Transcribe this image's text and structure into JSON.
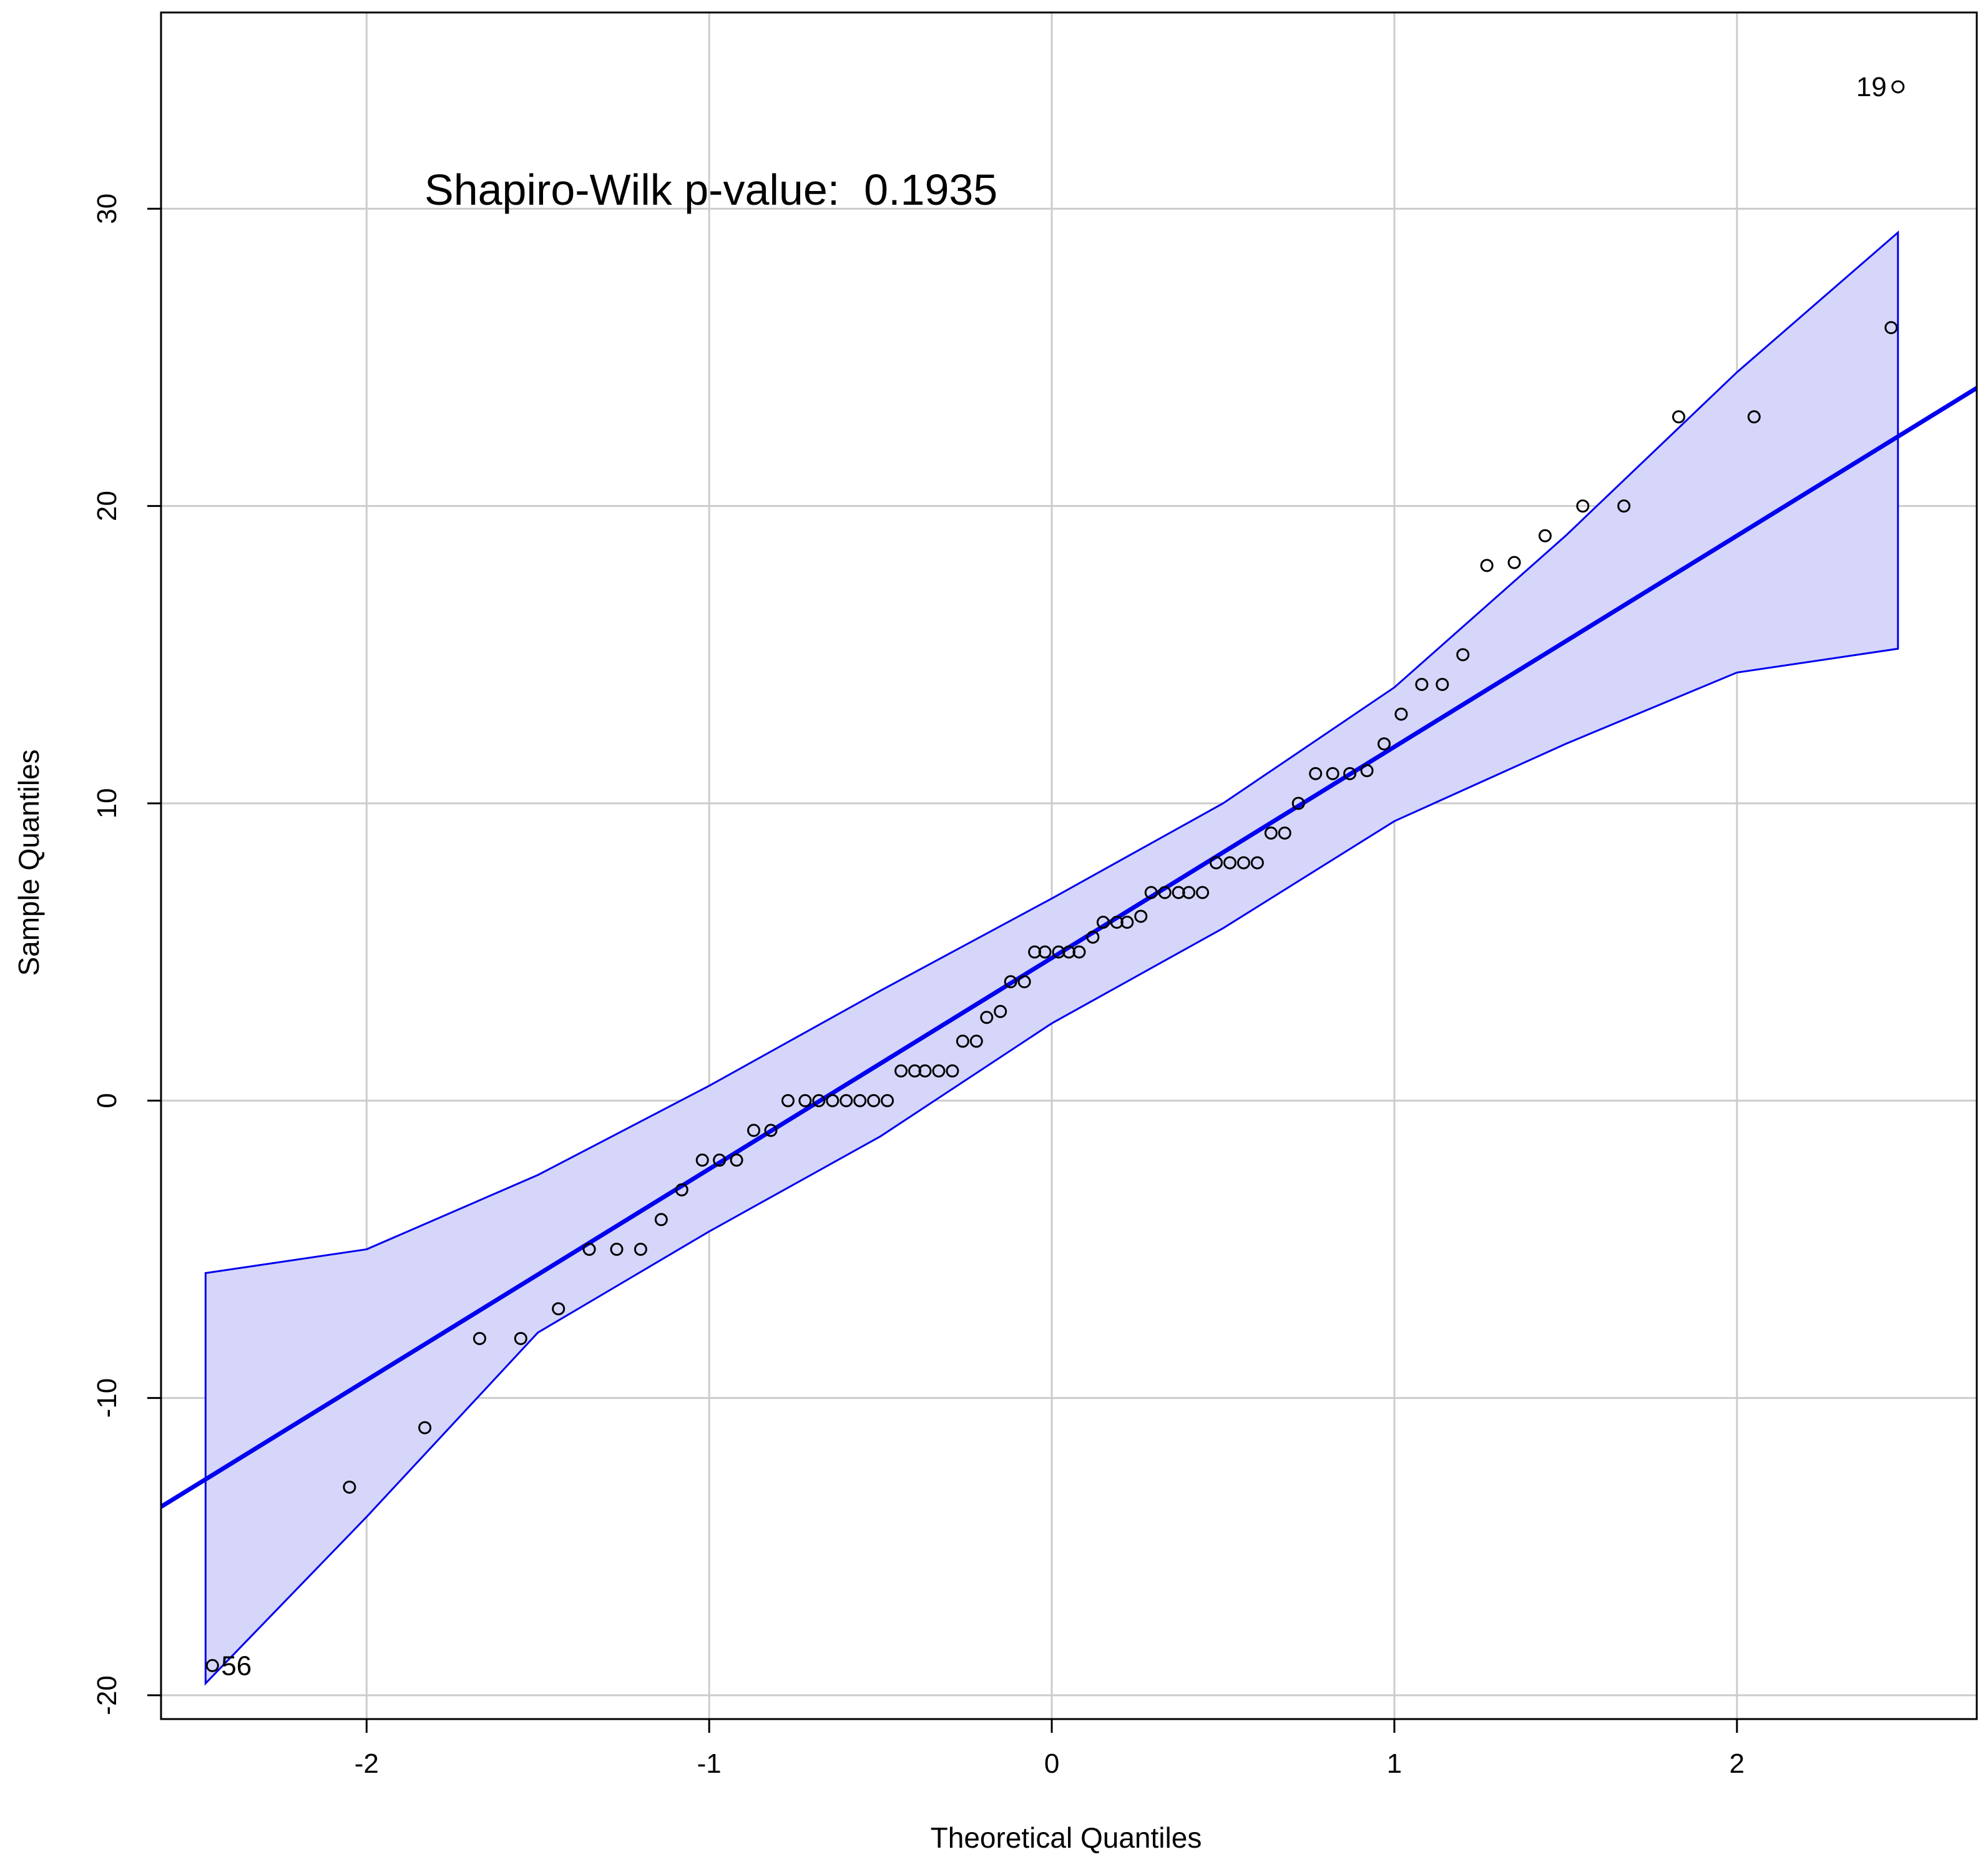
{
  "chart_data": {
    "type": "scatter",
    "xlabel": "Theoretical Quantiles",
    "ylabel": "Sample Quantiles",
    "xlim": [
      -2.6,
      2.7
    ],
    "ylim": [
      -20.8,
      36.6
    ],
    "x_ticks": [
      -2,
      -1,
      0,
      1,
      2
    ],
    "y_ticks": [
      -20,
      -10,
      0,
      10,
      20,
      30
    ],
    "x_tick_labels": [
      "-2",
      "-1",
      "0",
      "1",
      "2"
    ],
    "y_tick_labels": [
      "-20",
      "-10",
      "0",
      "10",
      "20",
      "30"
    ],
    "grid": true,
    "annotation": "Shapiro-Wilk p-value:  0.1935",
    "colors": {
      "line": "#0000ee",
      "band_fill": "#d6d6fa",
      "band_edge": "#0000ee",
      "points": "#000000",
      "grid": "#cccccc"
    },
    "points": [
      {
        "x": -2.45,
        "y": -19,
        "label": "56"
      },
      {
        "x": -2.05,
        "y": -13
      },
      {
        "x": -1.83,
        "y": -11
      },
      {
        "x": -1.67,
        "y": -8
      },
      {
        "x": -1.55,
        "y": -8
      },
      {
        "x": -1.44,
        "y": -7
      },
      {
        "x": -1.35,
        "y": -5
      },
      {
        "x": -1.27,
        "y": -5
      },
      {
        "x": -1.2,
        "y": -5
      },
      {
        "x": -1.14,
        "y": -4
      },
      {
        "x": -1.08,
        "y": -3
      },
      {
        "x": -1.02,
        "y": -2
      },
      {
        "x": -0.97,
        "y": -2
      },
      {
        "x": -0.92,
        "y": -2
      },
      {
        "x": -0.87,
        "y": -1
      },
      {
        "x": -0.82,
        "y": -1
      },
      {
        "x": -0.77,
        "y": 0
      },
      {
        "x": -0.72,
        "y": 0
      },
      {
        "x": -0.68,
        "y": 0
      },
      {
        "x": -0.64,
        "y": 0
      },
      {
        "x": -0.6,
        "y": 0
      },
      {
        "x": -0.56,
        "y": 0
      },
      {
        "x": -0.52,
        "y": 0
      },
      {
        "x": -0.48,
        "y": 0
      },
      {
        "x": -0.44,
        "y": 1
      },
      {
        "x": -0.4,
        "y": 1
      },
      {
        "x": -0.37,
        "y": 1
      },
      {
        "x": -0.33,
        "y": 1
      },
      {
        "x": -0.29,
        "y": 1
      },
      {
        "x": -0.26,
        "y": 2
      },
      {
        "x": -0.22,
        "y": 2
      },
      {
        "x": -0.19,
        "y": 2.8
      },
      {
        "x": -0.15,
        "y": 3
      },
      {
        "x": -0.12,
        "y": 4
      },
      {
        "x": -0.08,
        "y": 4
      },
      {
        "x": -0.05,
        "y": 5
      },
      {
        "x": -0.02,
        "y": 5
      },
      {
        "x": 0.02,
        "y": 5
      },
      {
        "x": 0.05,
        "y": 5
      },
      {
        "x": 0.08,
        "y": 5
      },
      {
        "x": 0.12,
        "y": 5.5
      },
      {
        "x": 0.15,
        "y": 6
      },
      {
        "x": 0.19,
        "y": 6
      },
      {
        "x": 0.22,
        "y": 6
      },
      {
        "x": 0.26,
        "y": 6.2
      },
      {
        "x": 0.29,
        "y": 7
      },
      {
        "x": 0.33,
        "y": 7
      },
      {
        "x": 0.37,
        "y": 7
      },
      {
        "x": 0.4,
        "y": 7
      },
      {
        "x": 0.44,
        "y": 7
      },
      {
        "x": 0.48,
        "y": 8
      },
      {
        "x": 0.52,
        "y": 8
      },
      {
        "x": 0.56,
        "y": 8
      },
      {
        "x": 0.6,
        "y": 8
      },
      {
        "x": 0.64,
        "y": 9
      },
      {
        "x": 0.68,
        "y": 9
      },
      {
        "x": 0.72,
        "y": 10
      },
      {
        "x": 0.77,
        "y": 11
      },
      {
        "x": 0.82,
        "y": 11
      },
      {
        "x": 0.87,
        "y": 11
      },
      {
        "x": 0.92,
        "y": 11.1
      },
      {
        "x": 0.97,
        "y": 12
      },
      {
        "x": 1.02,
        "y": 13
      },
      {
        "x": 1.08,
        "y": 14
      },
      {
        "x": 1.14,
        "y": 14
      },
      {
        "x": 1.2,
        "y": 15
      },
      {
        "x": 1.27,
        "y": 18
      },
      {
        "x": 1.35,
        "y": 18.1
      },
      {
        "x": 1.44,
        "y": 19
      },
      {
        "x": 1.55,
        "y": 20
      },
      {
        "x": 1.67,
        "y": 20
      },
      {
        "x": 1.83,
        "y": 23
      },
      {
        "x": 2.05,
        "y": 23
      },
      {
        "x": 2.45,
        "y": 26
      },
      {
        "x": 2.47,
        "y": 34.1,
        "label": "19"
      }
    ],
    "reference_line": {
      "intercept": 4.8,
      "slope": 7.1
    },
    "band_x": [
      -2.47,
      -2.0,
      -1.5,
      -1.0,
      -0.5,
      0.0,
      0.5,
      1.0,
      1.5,
      2.0,
      2.47
    ],
    "band_upper": [
      -5.8,
      -5.0,
      -2.5,
      0.5,
      3.7,
      6.8,
      10.0,
      13.9,
      19.0,
      24.5,
      29.2
    ],
    "band_lower": [
      -19.6,
      -14.0,
      -7.8,
      -4.4,
      -1.2,
      2.6,
      5.8,
      9.4,
      12.0,
      14.4,
      15.2
    ]
  }
}
